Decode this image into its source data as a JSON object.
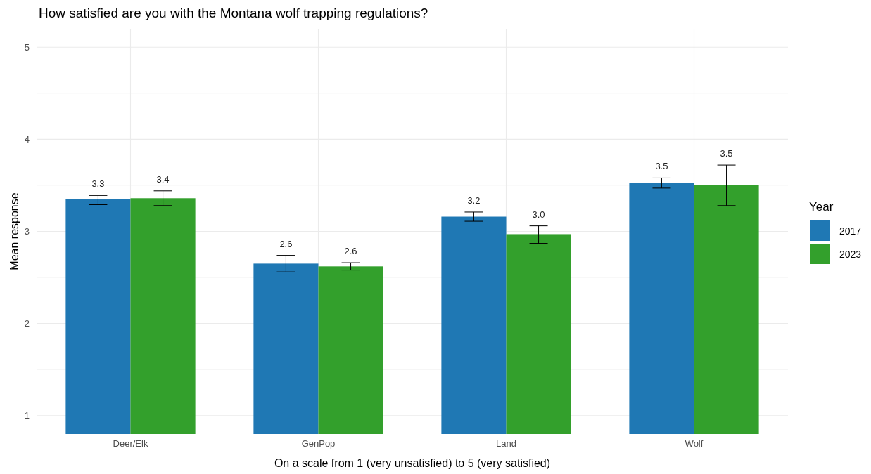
{
  "chart_data": {
    "type": "bar",
    "title": "How satisfied are you with the Montana wolf trapping regulations?",
    "xlabel": "On a scale from 1 (very unsatisfied) to 5 (very satisfied)",
    "ylabel": "Mean response",
    "legend_title": "Year",
    "categories": [
      "Deer/Elk",
      "GenPop",
      "Land",
      "Wolf"
    ],
    "series": [
      {
        "name": "2017",
        "color": "#1f78b4",
        "values": [
          3.35,
          2.65,
          3.16,
          3.53
        ],
        "errors": [
          [
            3.29,
            3.39
          ],
          [
            2.56,
            2.74
          ],
          [
            3.11,
            3.21
          ],
          [
            3.47,
            3.58
          ]
        ],
        "value_labels": [
          "3.3",
          "2.6",
          "3.2",
          "3.5"
        ]
      },
      {
        "name": "2023",
        "color": "#33a02c",
        "values": [
          3.36,
          2.62,
          2.97,
          3.5
        ],
        "errors": [
          [
            3.28,
            3.44
          ],
          [
            2.58,
            2.66
          ],
          [
            2.87,
            3.06
          ],
          [
            3.28,
            3.72
          ]
        ],
        "value_labels": [
          "3.4",
          "2.6",
          "3.0",
          "3.5"
        ]
      }
    ],
    "ylim": [
      0.8,
      5.2
    ],
    "yticks": [
      1,
      {
        "value": 1.5,
        "label": null
      },
      2,
      {
        "value": 2.5,
        "label": null
      },
      3,
      {
        "value": 3.5,
        "label": null
      },
      4,
      {
        "value": 4.5,
        "label": null
      },
      5
    ],
    "grid": true,
    "legend": "right"
  }
}
